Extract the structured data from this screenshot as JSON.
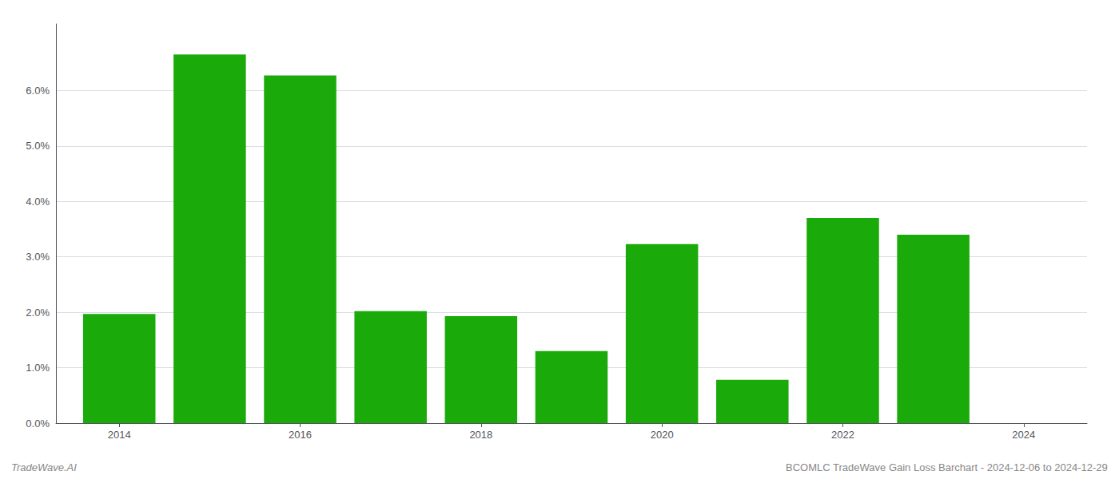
{
  "chart_data": {
    "type": "bar",
    "x": [
      2014,
      2015,
      2016,
      2017,
      2018,
      2019,
      2020,
      2021,
      2022,
      2023
    ],
    "values": [
      0.0197,
      0.0665,
      0.0627,
      0.0202,
      0.0193,
      0.013,
      0.0323,
      0.0078,
      0.037,
      0.034
    ],
    "color": "#1aab0a",
    "xlim": [
      2013.3,
      2024.7
    ],
    "xticks": [
      2014,
      2016,
      2018,
      2020,
      2022,
      2024
    ],
    "ylim": [
      0,
      0.072
    ],
    "yticks": [
      {
        "value": 0.0,
        "label": "0.0%"
      },
      {
        "value": 0.01,
        "label": "1.0%"
      },
      {
        "value": 0.02,
        "label": "2.0%"
      },
      {
        "value": 0.03,
        "label": "3.0%"
      },
      {
        "value": 0.04,
        "label": "4.0%"
      },
      {
        "value": 0.05,
        "label": "5.0%"
      },
      {
        "value": 0.06,
        "label": "6.0%"
      }
    ],
    "grid": true,
    "annotations": [
      "TradeWave.AI",
      "BCOMLC TradeWave Gain Loss Barchart - 2024-12-06 to 2024-12-29"
    ]
  }
}
